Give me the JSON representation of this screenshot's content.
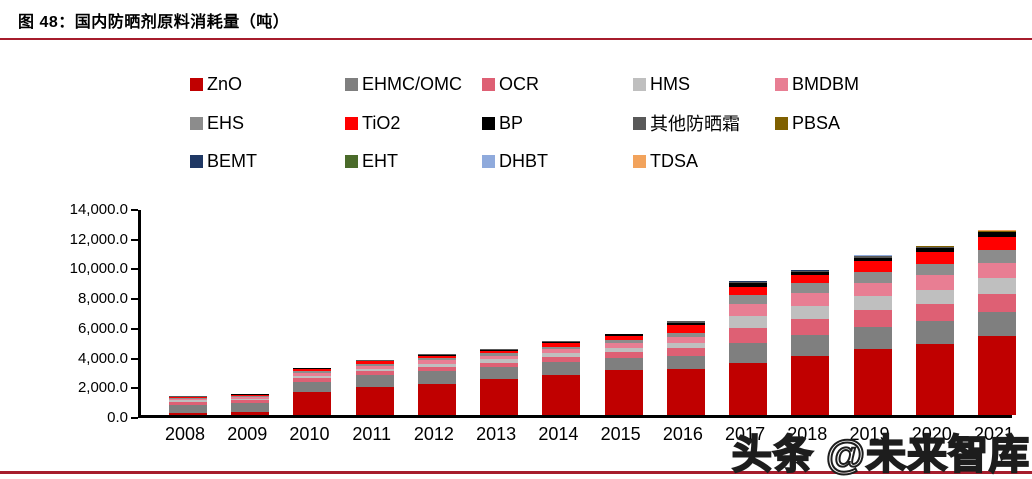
{
  "figure": {
    "title": "图 48：国内防晒剂原料消耗量（吨）",
    "watermark": "头条 @未来智库",
    "accent_color": "#A61C2C"
  },
  "chart_data": {
    "type": "bar",
    "stacked": true,
    "title": "国内防晒剂原料消耗量（吨）",
    "xlabel": "",
    "ylabel": "",
    "ylim": [
      0,
      14000
    ],
    "y_tick_step": 2000,
    "y_tick_labels_top_down": [
      "14,000.0",
      "12,000.0",
      "10,000.0",
      "8,000.0",
      "6,000.0",
      "4,000.0",
      "2,000.0",
      "0.0"
    ],
    "grid": false,
    "legend_position": "top",
    "categories": [
      "2008",
      "2009",
      "2010",
      "2011",
      "2012",
      "2013",
      "2014",
      "2015",
      "2016",
      "2017",
      "2018",
      "2019",
      "2020",
      "2021"
    ],
    "series": [
      {
        "name": "ZnO",
        "color": "#C00000",
        "values": [
          150,
          200,
          1550,
          1870,
          2100,
          2400,
          2700,
          3050,
          3100,
          3500,
          4000,
          4450,
          4800,
          5300
        ]
      },
      {
        "name": "EHMC/OMC",
        "color": "#7F7F7F",
        "values": [
          550,
          600,
          700,
          800,
          850,
          800,
          850,
          800,
          900,
          1350,
          1400,
          1500,
          1550,
          1650
        ]
      },
      {
        "name": "OCR",
        "color": "#DE6074",
        "values": [
          200,
          220,
          250,
          270,
          300,
          320,
          350,
          400,
          500,
          1000,
          1050,
          1100,
          1100,
          1200
        ]
      },
      {
        "name": "HMS",
        "color": "#BFBFBF",
        "values": [
          80,
          90,
          150,
          180,
          200,
          220,
          250,
          280,
          350,
          800,
          900,
          950,
          1000,
          1100
        ]
      },
      {
        "name": "BMDBM",
        "color": "#E87E93",
        "values": [
          100,
          110,
          180,
          200,
          230,
          250,
          280,
          300,
          400,
          800,
          850,
          900,
          950,
          1000
        ]
      },
      {
        "name": "EHS",
        "color": "#8C8C8C",
        "values": [
          60,
          70,
          120,
          130,
          150,
          160,
          180,
          200,
          300,
          650,
          700,
          750,
          800,
          850
        ]
      },
      {
        "name": "TiO2",
        "color": "#FF0000",
        "values": [
          60,
          70,
          150,
          160,
          170,
          180,
          250,
          280,
          500,
          550,
          550,
          700,
          750,
          900
        ]
      },
      {
        "name": "BP",
        "color": "#000000",
        "values": [
          40,
          40,
          50,
          40,
          50,
          70,
          80,
          120,
          180,
          250,
          180,
          250,
          280,
          300
        ]
      },
      {
        "name": "其他防晒霜",
        "color": "#595959",
        "values": [
          50,
          40,
          40,
          40,
          40,
          40,
          40,
          50,
          80,
          50,
          70,
          80,
          90,
          50
        ]
      },
      {
        "name": "PBSA",
        "color": "#7F6000",
        "values": [
          5,
          5,
          5,
          5,
          5,
          5,
          5,
          10,
          20,
          40,
          30,
          40,
          50,
          40
        ]
      },
      {
        "name": "BEMT",
        "color": "#1F3864",
        "values": [
          0,
          0,
          0,
          0,
          0,
          0,
          0,
          0,
          0,
          10,
          10,
          10,
          15,
          15
        ]
      },
      {
        "name": "EHT",
        "color": "#4A6B2A",
        "values": [
          0,
          0,
          0,
          0,
          0,
          0,
          0,
          0,
          0,
          5,
          5,
          10,
          10,
          10
        ]
      },
      {
        "name": "DHBT",
        "color": "#8FAADC",
        "values": [
          0,
          0,
          0,
          0,
          0,
          0,
          0,
          0,
          0,
          5,
          5,
          5,
          10,
          10
        ]
      },
      {
        "name": "TDSA",
        "color": "#F2A35C",
        "values": [
          0,
          0,
          0,
          0,
          0,
          0,
          0,
          0,
          0,
          5,
          5,
          5,
          5,
          10
        ]
      }
    ]
  }
}
